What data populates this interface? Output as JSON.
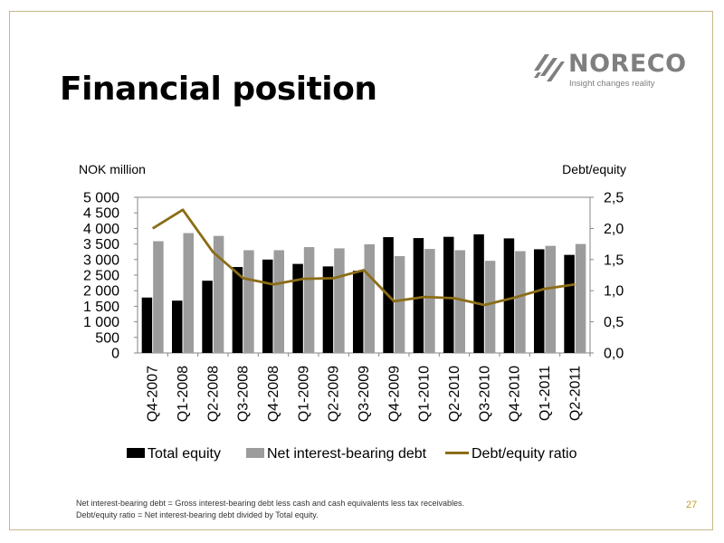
{
  "slide": {
    "title": "Financial position",
    "page_number": "27",
    "footnotes": [
      "Net interest-bearing debt = Gross interest-bearing debt less cash and cash equivalents less tax receivables.",
      "Debt/equity ratio = Net interest-bearing debt divided by Total equity."
    ]
  },
  "logo": {
    "name": "NORECO",
    "tagline": "Insight changes reality"
  },
  "colors": {
    "frame": "#c9b88a",
    "total_equity": "#000000",
    "net_debt": "#9c9c9c",
    "ratio_line": "#8b6d16",
    "page_number": "#c69c25",
    "logo": "#7f7f7f"
  },
  "chart_data": {
    "type": "bar",
    "combo": "bar+line (secondary axis)",
    "left_axis_label": "NOK million",
    "right_axis_label": "Debt/equity",
    "categories": [
      "Q4-2007",
      "Q1-2008",
      "Q2-2008",
      "Q3-2008",
      "Q4-2008",
      "Q1-2009",
      "Q2-2009",
      "Q3-2009",
      "Q4-2009",
      "Q1-2010",
      "Q2-2010",
      "Q3-2010",
      "Q4-2010",
      "Q1-2011",
      "Q2-2011"
    ],
    "ylim": [
      0,
      5000
    ],
    "yticks": [
      "0",
      "500",
      "1 000",
      "1 500",
      "2 000",
      "2 500",
      "3 000",
      "3 500",
      "4 000",
      "4 500",
      "5 000"
    ],
    "y2lim": [
      0,
      2.5
    ],
    "y2ticks": [
      "0,0",
      "0,5",
      "1,0",
      "1,5",
      "2,0",
      "2,5"
    ],
    "series": [
      {
        "name": "Total equity",
        "type": "bar",
        "axis": "left",
        "values": [
          1780,
          1680,
          2320,
          2760,
          3000,
          2860,
          2780,
          2640,
          3720,
          3690,
          3730,
          3810,
          3680,
          3330,
          3150
        ]
      },
      {
        "name": "Net interest-bearing debt",
        "type": "bar",
        "axis": "left",
        "values": [
          3590,
          3850,
          3760,
          3300,
          3300,
          3400,
          3360,
          3490,
          3110,
          3340,
          3300,
          2960,
          3270,
          3440,
          3500
        ]
      },
      {
        "name": "Debt/equity ratio",
        "type": "line",
        "axis": "right",
        "values": [
          2.0,
          2.3,
          1.62,
          1.2,
          1.1,
          1.19,
          1.2,
          1.33,
          0.83,
          0.9,
          0.88,
          0.77,
          0.89,
          1.03,
          1.1
        ]
      }
    ],
    "legend_position": "bottom",
    "grid": false
  }
}
